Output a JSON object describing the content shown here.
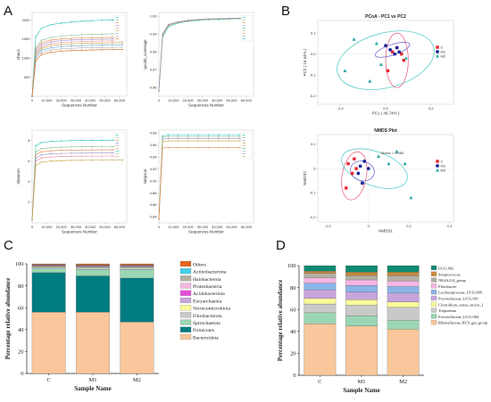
{
  "panel_letters": [
    "A",
    "B",
    "C",
    "D"
  ],
  "colors": {
    "C": "#e8232e",
    "M1": "#1c2a9c",
    "M2": "#2aa7a5",
    "ellipse_red": "#e8577a",
    "ellipse_blue": "#6a5acd",
    "ellipse_teal": "#46c6c6"
  },
  "chart_data": [
    {
      "id": "A1",
      "type": "line",
      "ylabel": "chao1",
      "xlabel": "Sequences Number",
      "xticks": [
        "0",
        "10,000",
        "20,000",
        "30,000",
        "40,000",
        "50,000",
        "60,000"
      ],
      "yticks": [
        "500",
        "1000",
        "1500",
        "2000"
      ],
      "xlim": [
        0,
        65000
      ],
      "ylim": [
        0,
        2200
      ],
      "x": [
        0,
        2500,
        6500,
        13000,
        20000,
        27000,
        34000,
        41000,
        48000,
        55000,
        62000
      ],
      "series": [
        {
          "color": "#21c2b0",
          "values": [
            0,
            1560,
            1790,
            1880,
            1920,
            1950,
            1970,
            1985,
            1995,
            2005,
            2010
          ]
        },
        {
          "color": "#8fbc8f",
          "values": [
            0,
            1280,
            1470,
            1545,
            1580,
            1600,
            1615,
            1625,
            1630,
            1640,
            1645
          ]
        },
        {
          "color": "#e08a4e",
          "values": [
            0,
            1230,
            1410,
            1475,
            1505,
            1520,
            1530,
            1535,
            1540,
            1545,
            1550
          ]
        },
        {
          "color": "#9b8ec4",
          "values": [
            0,
            1180,
            1360,
            1430,
            1460,
            1475,
            1485,
            1490,
            1495,
            1500,
            1505
          ]
        },
        {
          "color": "#e38c9c",
          "values": [
            0,
            1130,
            1310,
            1380,
            1410,
            1425,
            1435,
            1442,
            1448,
            1452,
            1455
          ]
        },
        {
          "color": "#c2a13b",
          "values": [
            0,
            1090,
            1260,
            1330,
            1360,
            1375,
            1385,
            1392,
            1398,
            1402,
            1405
          ]
        },
        {
          "color": "#6a9fd2",
          "values": [
            0,
            1040,
            1210,
            1275,
            1305,
            1320,
            1330,
            1337,
            1342,
            1346,
            1350
          ]
        },
        {
          "color": "#b0b0b0",
          "values": [
            0,
            990,
            1150,
            1215,
            1245,
            1260,
            1270,
            1276,
            1281,
            1285,
            1288
          ]
        },
        {
          "color": "#d2691e",
          "values": [
            0,
            940,
            1095,
            1155,
            1185,
            1200,
            1210,
            1216,
            1221,
            1225,
            1228
          ]
        }
      ],
      "legend": {
        "placement": "right",
        "entries": [
          "",
          "",
          "",
          "",
          "",
          "",
          "",
          "",
          ""
        ]
      }
    },
    {
      "id": "A2",
      "type": "line",
      "ylabel": "goods_coverage",
      "xlabel": "Sequences Number",
      "xticks": [
        "0",
        "10,000",
        "20,000",
        "30,000",
        "40,000",
        "50,000",
        "60,000"
      ],
      "yticks": [
        "0.96",
        "0.97",
        "0.98",
        "0.99",
        "1.00"
      ],
      "xlim": [
        0,
        65000
      ],
      "ylim": [
        0.955,
        1.002
      ],
      "x": [
        0,
        2500,
        6500,
        13000,
        20000,
        27000,
        34000,
        41000,
        48000,
        55000,
        62000
      ],
      "series": [
        {
          "color": "#21c2b0",
          "values": [
            0.958,
            0.988,
            0.994,
            0.996,
            0.997,
            0.9975,
            0.998,
            0.998,
            0.9983,
            0.9985,
            0.9986
          ]
        },
        {
          "color": "#8fbc8f",
          "values": [
            0.958,
            0.989,
            0.9945,
            0.9963,
            0.9972,
            0.9978,
            0.9982,
            0.9983,
            0.9985,
            0.9986,
            0.9987
          ]
        },
        {
          "color": "#e08a4e",
          "values": [
            0.958,
            0.9895,
            0.995,
            0.9966,
            0.9974,
            0.998,
            0.9983,
            0.9985,
            0.9986,
            0.9987,
            0.9988
          ]
        },
        {
          "color": "#9b8ec4",
          "values": [
            0.958,
            0.99,
            0.9953,
            0.9968,
            0.9976,
            0.9981,
            0.9984,
            0.9986,
            0.9987,
            0.9988,
            0.9989
          ]
        }
      ],
      "legend": {
        "placement": "right",
        "entries": [
          "",
          "",
          "",
          "",
          "",
          "",
          "",
          "",
          ""
        ]
      }
    },
    {
      "id": "A3",
      "type": "line",
      "ylabel": "shannon",
      "xlabel": "Sequences Number",
      "xticks": [
        "0",
        "10,000",
        "20,000",
        "30,000",
        "40,000",
        "50,000",
        "60,000"
      ],
      "yticks": [
        "2",
        "4",
        "6",
        "8"
      ],
      "xlim": [
        0,
        65000
      ],
      "ylim": [
        0,
        9
      ],
      "x": [
        0,
        2500,
        6500,
        13000,
        20000,
        27000,
        34000,
        41000,
        48000,
        55000,
        62000
      ],
      "series": [
        {
          "color": "#21c2b0",
          "values": [
            0.3,
            7.5,
            7.8,
            7.9,
            7.95,
            7.98,
            8.0,
            8.0,
            8.02,
            8.03,
            8.03
          ]
        },
        {
          "color": "#8fbc8f",
          "values": [
            0.3,
            6.9,
            7.2,
            7.3,
            7.35,
            7.37,
            7.38,
            7.39,
            7.4,
            7.4,
            7.41
          ]
        },
        {
          "color": "#e08a4e",
          "values": [
            0.3,
            6.6,
            6.9,
            7.0,
            7.04,
            7.06,
            7.07,
            7.08,
            7.09,
            7.09,
            7.1
          ]
        },
        {
          "color": "#9b8ec4",
          "values": [
            0.3,
            6.3,
            6.6,
            6.7,
            6.74,
            6.76,
            6.77,
            6.78,
            6.78,
            6.79,
            6.79
          ]
        },
        {
          "color": "#e38c9c",
          "values": [
            0.3,
            6.0,
            6.3,
            6.4,
            6.44,
            6.46,
            6.47,
            6.48,
            6.48,
            6.49,
            6.49
          ]
        },
        {
          "color": "#c2a13b",
          "values": [
            0.3,
            5.6,
            5.9,
            6.0,
            6.04,
            6.06,
            6.07,
            6.08,
            6.08,
            6.09,
            6.09
          ]
        }
      ],
      "legend": {
        "placement": "right",
        "entries": [
          "",
          "",
          "",
          "",
          "",
          "",
          "",
          "",
          ""
        ]
      }
    },
    {
      "id": "A4",
      "type": "line",
      "ylabel": "simpson",
      "xlabel": "Sequences Number",
      "xticks": [
        "0",
        "10,000",
        "20,000",
        "30,000",
        "40,000",
        "50,000",
        "60,000"
      ],
      "yticks": [
        "0.84",
        "0.86",
        "0.88",
        "0.90",
        "0.92",
        "0.94",
        "0.96",
        "0.98"
      ],
      "xlim": [
        0,
        65000
      ],
      "ylim": [
        0.83,
        0.985
      ],
      "x": [
        0,
        2500,
        6500,
        13000,
        20000,
        27000,
        34000,
        41000,
        48000,
        55000,
        62000
      ],
      "series": [
        {
          "color": "#21c2b0",
          "values": [
            0.836,
            0.975,
            0.977,
            0.977,
            0.977,
            0.977,
            0.977,
            0.977,
            0.977,
            0.977,
            0.977
          ]
        },
        {
          "color": "#8fbc8f",
          "values": [
            0.836,
            0.973,
            0.974,
            0.974,
            0.974,
            0.974,
            0.974,
            0.974,
            0.974,
            0.974,
            0.974
          ]
        },
        {
          "color": "#9b8ec4",
          "values": [
            0.836,
            0.97,
            0.971,
            0.971,
            0.971,
            0.971,
            0.971,
            0.971,
            0.971,
            0.971,
            0.971
          ]
        },
        {
          "color": "#c2a13b",
          "values": [
            0.836,
            0.966,
            0.967,
            0.967,
            0.967,
            0.967,
            0.967,
            0.967,
            0.967,
            0.967,
            0.967
          ]
        },
        {
          "color": "#e08a4e",
          "values": [
            0.836,
            0.955,
            0.956,
            0.956,
            0.956,
            0.956,
            0.956,
            0.956,
            0.956,
            0.956,
            0.956
          ]
        }
      ],
      "legend": {
        "placement": "right",
        "entries": [
          "",
          "",
          "",
          "",
          "",
          "",
          "",
          "",
          ""
        ]
      }
    },
    {
      "id": "B1",
      "type": "scatter",
      "title": "PCoA - PC1 vs PC2",
      "xlabel": "PC1 ( 49.74% )",
      "ylabel": "PC2 ( 16.44% )",
      "xticks": [
        "-0.2",
        "0.0",
        "0.2"
      ],
      "yticks": [
        "-0.2",
        "-0.1",
        "0.0",
        "0.1"
      ],
      "xlim": [
        -0.3,
        0.3
      ],
      "ylim": [
        -0.24,
        0.16
      ],
      "legend": {
        "placement": "right",
        "entries": [
          "C",
          "M1",
          "M2"
        ]
      },
      "series": [
        {
          "name": "C",
          "x": [
            0.05,
            0.03,
            0.07,
            0.01,
            0.08
          ],
          "y": [
            0.03,
            0.01,
            0.0,
            -0.08,
            -0.03
          ]
        },
        {
          "name": "M1",
          "x": [
            0.0,
            0.02,
            0.04,
            0.05,
            0.06
          ],
          "y": [
            0.04,
            0.02,
            0.0,
            0.03,
            0.01
          ]
        },
        {
          "name": "M2",
          "x": [
            -0.14,
            -0.04,
            -0.18,
            -0.02,
            -0.07,
            0.09
          ],
          "y": [
            0.07,
            0.05,
            -0.08,
            -0.05,
            -0.13,
            -0.02
          ]
        }
      ]
    },
    {
      "id": "B2",
      "type": "scatter",
      "title": "NMDS Plot",
      "xlabel": "NMDS1",
      "ylabel": "NMDS2",
      "xticks": [
        "-0.2",
        "0",
        "0.2",
        "0.4"
      ],
      "yticks": [
        "-0.2",
        "-0.1",
        "0",
        "0.1"
      ],
      "xlim": [
        -0.25,
        0.42
      ],
      "ylim": [
        -0.22,
        0.14
      ],
      "annotation": "Stress = 0.080",
      "legend": {
        "placement": "right",
        "entries": [
          "C",
          "M1",
          "M2"
        ]
      },
      "series": [
        {
          "name": "C",
          "x": [
            -0.1,
            -0.07,
            -0.11,
            -0.03,
            -0.08,
            -0.06
          ],
          "y": [
            0.02,
            0.04,
            -0.08,
            -0.06,
            -0.02,
            0.0
          ]
        },
        {
          "name": "M1",
          "x": [
            -0.05,
            0.0,
            -0.02,
            -0.03,
            -0.04
          ],
          "y": [
            -0.02,
            0.0,
            0.03,
            -0.06,
            0.01
          ]
        },
        {
          "name": "M2",
          "x": [
            0.14,
            0.05,
            0.18,
            0.21,
            0.1
          ],
          "y": [
            0.07,
            0.05,
            0.02,
            -0.12,
            0.02
          ]
        }
      ]
    },
    {
      "id": "C",
      "type": "bar",
      "stacked": true,
      "xlabel": "Sample Name",
      "ylabel": "Percentage relative abundance",
      "categories": [
        "C",
        "M1",
        "M2"
      ],
      "yticks": [
        "0",
        "20",
        "40",
        "60",
        "80",
        "100"
      ],
      "ylim": [
        0,
        100
      ],
      "legend": {
        "placement": "right"
      },
      "series": [
        {
          "name": "Bacteroidota",
          "color": "#f9c79b",
          "values": [
            56,
            56,
            47
          ]
        },
        {
          "name": "Firmicutes",
          "color": "#007c80",
          "values": [
            36,
            33,
            40
          ]
        },
        {
          "name": "Spirochaetota",
          "color": "#9bd6b4",
          "values": [
            4,
            6,
            8
          ]
        },
        {
          "name": "Fibrobacterota",
          "color": "#c9c9c9",
          "values": [
            1,
            1.5,
            1.5
          ]
        },
        {
          "name": "Verrucomicrobiota",
          "color": "#fafa9a",
          "values": [
            0.6,
            0.6,
            0.6
          ]
        },
        {
          "name": "Euryarchaeota",
          "color": "#c7a5db",
          "values": [
            0.5,
            0.5,
            0.5
          ]
        },
        {
          "name": "Acidobacteriota",
          "color": "#e44ed8",
          "values": [
            0.3,
            0.3,
            0.3
          ]
        },
        {
          "name": "Proteobacteria",
          "color": "#f5b6e3",
          "values": [
            0.4,
            0.5,
            0.5
          ]
        },
        {
          "name": "Halobacterota",
          "color": "#b3b0a4",
          "values": [
            0.3,
            0.3,
            0.3
          ]
        },
        {
          "name": "Actinobacteriota",
          "color": "#48d1e8",
          "values": [
            0.2,
            0.2,
            0.2
          ]
        },
        {
          "name": "Others",
          "color": "#e8641c",
          "values": [
            0.7,
            1.1,
            1.1
          ]
        }
      ],
      "legend_order": [
        "Others",
        "Actinobacteriota",
        "Halobacterota",
        "Proteobacteria",
        "Acidobacteriota",
        "Euryarchaeota",
        "Verrucomicrobiota",
        "Fibrobacterota",
        "Spirochaetota",
        "Firmicutes",
        "Bacteroidota"
      ]
    },
    {
      "id": "D",
      "type": "bar",
      "stacked": true,
      "xlabel": "Sample Name",
      "ylabel": "Percentage relative abundance",
      "categories": [
        "C",
        "M1",
        "M2"
      ],
      "yticks": [
        "0",
        "20",
        "40",
        "60",
        "80",
        "100"
      ],
      "ylim": [
        0,
        100
      ],
      "legend": {
        "placement": "right"
      },
      "series": [
        {
          "name": "Rikenellaceae_RC9_gut_group",
          "color": "#f9c79b",
          "values": [
            47,
            45,
            42
          ]
        },
        {
          "name": "Prevotellaceae_UCG-004",
          "color": "#9bd6b4",
          "values": [
            10,
            9,
            8
          ]
        },
        {
          "name": "Treponema",
          "color": "#c9c9c9",
          "values": [
            8,
            10,
            12
          ]
        },
        {
          "name": "Clostridium_sensu_stricto_1",
          "color": "#fafa9a",
          "values": [
            5,
            5,
            5
          ]
        },
        {
          "name": "Prevotellaceae_UCG-001",
          "color": "#c7a5db",
          "values": [
            8,
            7,
            8
          ]
        },
        {
          "name": "Lachnospiraceae_UCG-009",
          "color": "#8ab4e8",
          "values": [
            6,
            6,
            6
          ]
        },
        {
          "name": "Fibrobacter",
          "color": "#f5b6e3",
          "values": [
            5,
            5,
            5
          ]
        },
        {
          "name": "NK4A214_group",
          "color": "#b3b0a4",
          "values": [
            4,
            4,
            5
          ]
        },
        {
          "name": "Streptococcus",
          "color": "#c98a3c",
          "values": [
            2,
            3,
            3
          ]
        },
        {
          "name": "UCG-002",
          "color": "#0f8a70",
          "values": [
            5,
            6,
            6
          ]
        }
      ],
      "legend_order": [
        "UCG-002",
        "Streptococcus",
        "NK4A214_group",
        "Fibrobacter",
        "Lachnospiraceae_UCG-009",
        "Prevotellaceae_UCG-001",
        "Clostridium_sensu_stricto_1",
        "Treponema",
        "Prevotellaceae_UCG-004",
        "Rikenellaceae_RC9_gut_group"
      ]
    }
  ]
}
